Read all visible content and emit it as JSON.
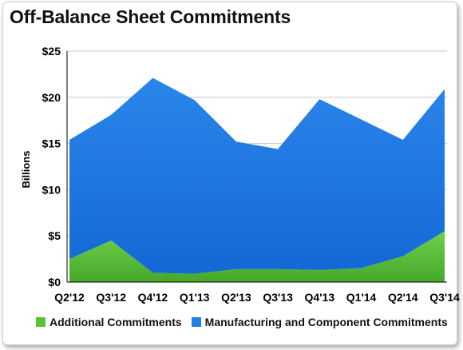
{
  "title": "Off-Balance Sheet Commitments",
  "chart_data": {
    "type": "area",
    "stacked": true,
    "title": "Off-Balance Sheet Commitments",
    "xlabel": "",
    "ylabel": "Billions",
    "categories": [
      "Q2'12",
      "Q3'12",
      "Q4'12",
      "Q1'13",
      "Q2'13",
      "Q3'13",
      "Q4'13",
      "Q1'14",
      "Q2'14",
      "Q3'14"
    ],
    "ylim": [
      0,
      25
    ],
    "yticks": [
      0,
      5,
      10,
      15,
      20,
      25
    ],
    "ytick_labels": [
      "$0",
      "$5",
      "$10",
      "$15",
      "$20",
      "$25"
    ],
    "grid": true,
    "legend_position": "bottom",
    "series": [
      {
        "name": "Additional Commitments",
        "color": "#5bc236",
        "values": [
          2.5,
          4.5,
          1.0,
          0.9,
          1.4,
          1.4,
          1.3,
          1.5,
          2.8,
          5.5
        ]
      },
      {
        "name": "Manufacturing and Component Commitments",
        "color": "#1f7fe5",
        "values": [
          12.9,
          13.6,
          21.1,
          18.8,
          13.8,
          13.0,
          18.5,
          16.1,
          12.6,
          15.4
        ]
      }
    ]
  }
}
